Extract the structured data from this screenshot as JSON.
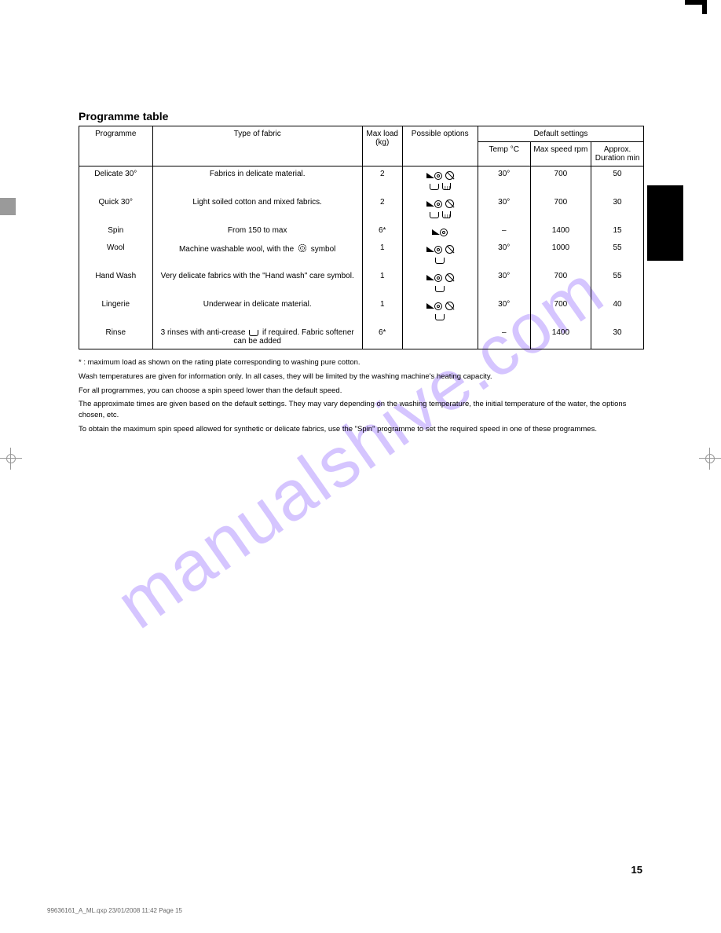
{
  "title": "Programme table",
  "columns": {
    "programme": "Programme",
    "type": "Type of fabric",
    "load_kg": "Max load (kg)",
    "options": "Possible options",
    "default": "Default settings",
    "temp": "Temp °C",
    "speed": "Max speed rpm",
    "duration": "Approx. Duration min"
  },
  "rows": [
    {
      "prog": "Delicate 30°",
      "type": "Fabrics in delicate material.",
      "load": "2",
      "opts": [
        "▱◉ ⊘",
        "⌴ ⟟"
      ],
      "temp": "30°",
      "speed": "700",
      "dur": "50"
    },
    {
      "prog": "Quick 30°",
      "type": "Light soiled cotton and mixed fabrics.",
      "load": "2",
      "opts": [
        "▱◉ ⊘",
        "⌴ ⟟"
      ],
      "temp": "30°",
      "speed": "700",
      "dur": "30"
    },
    {
      "prog": "Spin",
      "type": "From 150 to max",
      "load": "6*",
      "opts": [
        "▱◉"
      ],
      "temp": "–",
      "speed": "1400",
      "dur": "15"
    },
    {
      "prog": "Wool",
      "type_html": "Machine washable wool, with the <span class=\"wool\"></span> symbol",
      "load": "1",
      "opts": [
        "▱◉ ⊘",
        "⌴"
      ],
      "temp": "30°",
      "speed": "1000",
      "dur": "55"
    },
    {
      "prog": "Hand Wash",
      "type": "Very delicate fabrics with the \"Hand wash\" care symbol.",
      "load": "1",
      "opts": [
        "▱◉ ⊘",
        "⌴"
      ],
      "temp": "30°",
      "speed": "700",
      "dur": "55"
    },
    {
      "prog": "Lingerie",
      "type": "Underwear in delicate material.",
      "load": "1",
      "opts": [
        "▱◉ ⊘",
        "⌴"
      ],
      "temp": "30°",
      "speed": "700",
      "dur": "40"
    },
    {
      "prog": "Rinse",
      "type_html": "3 rinses with anti-crease <span class=\"tub-inline\"></span> if required. Fabric softener can be added",
      "load": "6*",
      "opts": [],
      "temp": "–",
      "speed": "1400",
      "dur": "30"
    }
  ],
  "notes": [
    "* : maximum load as shown on the rating plate corresponding to washing pure cotton.",
    "Wash temperatures are given for information only. In all cases, they will be limited by the washing machine's heating capacity.",
    "For all programmes, you can choose a spin speed lower than the default speed.",
    "The approximate times are given based on the default settings. They may vary depending on the washing temperature, the initial temperature of the water, the options chosen, etc.",
    "To obtain the maximum spin speed allowed for synthetic or delicate fabrics, use the \"Spin\" programme to set the required speed in one of these programmes."
  ],
  "page_number": "15",
  "footer_file": "99636161_A_ML.qxp  23/01/2008  11:42  Page 15",
  "watermark": "manualshive.com",
  "colors": {
    "watermark": "#8a5cff",
    "black": "#000000",
    "gray": "#9a9a9a"
  }
}
